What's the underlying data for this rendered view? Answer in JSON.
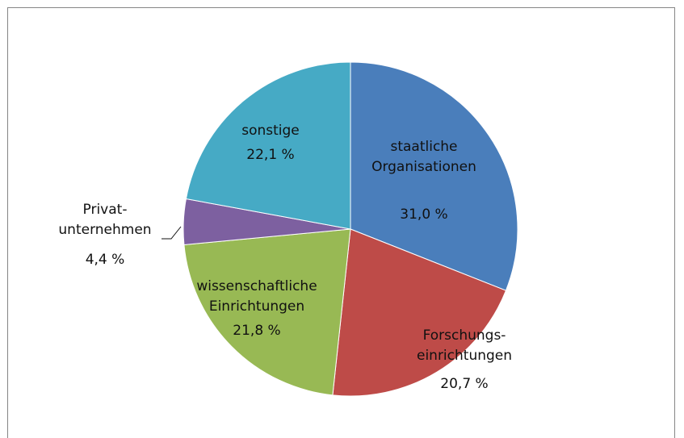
{
  "chart_data": {
    "type": "pie",
    "categories": [
      "staatliche\nOrganisationen",
      "Forschungs-\neinrichtungen",
      "wissenschaftliche\nEinrichtungen",
      "Privat-\nunternehmen",
      "sonstige"
    ],
    "values": [
      31.0,
      20.7,
      21.8,
      4.4,
      22.1
    ],
    "value_labels": [
      "31,0 %",
      "20,7 %",
      "21,8 %",
      "4,4 %",
      "22,1 %"
    ],
    "colors": [
      "#4a7ebb",
      "#be4b48",
      "#98b954",
      "#7d60a0",
      "#46aac5"
    ]
  }
}
